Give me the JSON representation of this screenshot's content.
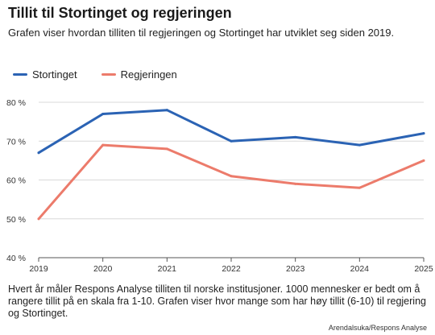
{
  "header": {
    "title": "Tillit til Stortinget og regjeringen",
    "subtitle": "Grafen viser hvordan tilliten til regjeringen og Stortinget har utviklet seg siden 2019."
  },
  "footer": {
    "note": "Hvert år måler Respons Analyse tilliten til norske institusjoner. 1000 mennesker er bedt om å rangere tillit på en skala fra 1-10. Grafen viser hvor mange som har høy tillit (6-10) til regjering og Stortinget.",
    "source": "Arendalsuka/Respons Analyse"
  },
  "chart_data": {
    "type": "line",
    "x": [
      "2019",
      "2020",
      "2021",
      "2022",
      "2023",
      "2024",
      "2025"
    ],
    "series": [
      {
        "name": "Stortinget",
        "color": "#2b63b4",
        "values": [
          67,
          77,
          78,
          70,
          71,
          69,
          72
        ]
      },
      {
        "name": "Regjeringen",
        "color": "#ec7b6b",
        "values": [
          50,
          69,
          68,
          61,
          59,
          58,
          65
        ]
      }
    ],
    "ylim": [
      40,
      80
    ],
    "yticks": [
      "40 %",
      "50 %",
      "60 %",
      "70 %",
      "80 %"
    ],
    "ytick_values": [
      40,
      50,
      60,
      70,
      80
    ],
    "grid": true,
    "legend": "top-left"
  }
}
